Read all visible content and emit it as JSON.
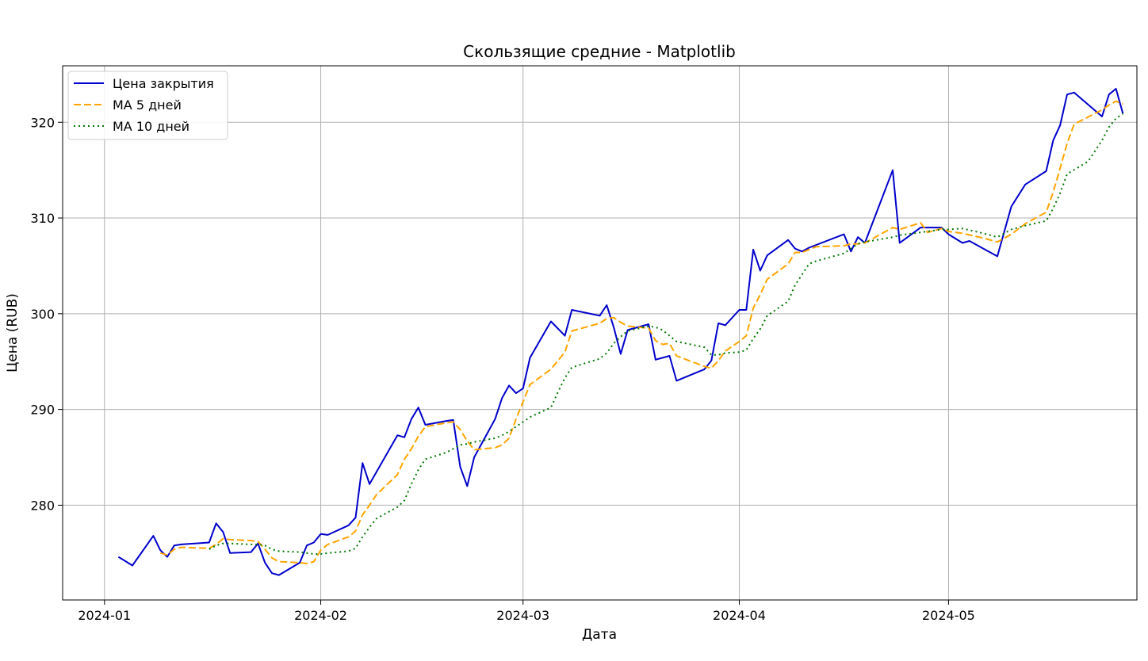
{
  "chart_data": {
    "type": "line",
    "title": "Скользящие средние - Matplotlib",
    "xlabel": "Дата",
    "ylabel": "Цена (RUB)",
    "x_range": [
      "2023-12-26",
      "2024-05-28"
    ],
    "ylim": [
      270.1,
      325.9
    ],
    "x_ticks": [
      "2024-01-01",
      "2024-02-01",
      "2024-03-01",
      "2024-04-01",
      "2024-05-01"
    ],
    "x_tick_labels": [
      "2024-01",
      "2024-02",
      "2024-03",
      "2024-04",
      "2024-05"
    ],
    "y_ticks": [
      280,
      290,
      300,
      310,
      320
    ],
    "y_tick_labels": [
      "280",
      "290",
      "300",
      "310",
      "320"
    ],
    "grid": true,
    "legend_position": "top-left",
    "series": [
      {
        "name": "Цена закрытия",
        "color": "#0000cc",
        "style": "solid",
        "points": [
          [
            "2024-01-03",
            274.6
          ],
          [
            "2024-01-05",
            273.7
          ],
          [
            "2024-01-08",
            276.8
          ],
          [
            "2024-01-09",
            275.3
          ],
          [
            "2024-01-10",
            274.6
          ],
          [
            "2024-01-11",
            275.8
          ],
          [
            "2024-01-12",
            275.9
          ],
          [
            "2024-01-16",
            276.1
          ],
          [
            "2024-01-17",
            278.1
          ],
          [
            "2024-01-18",
            277.2
          ],
          [
            "2024-01-19",
            275.0
          ],
          [
            "2024-01-22",
            275.1
          ],
          [
            "2024-01-23",
            276.0
          ],
          [
            "2024-01-24",
            274.0
          ],
          [
            "2024-01-25",
            272.9
          ],
          [
            "2024-01-26",
            272.7
          ],
          [
            "2024-01-29",
            274.0
          ],
          [
            "2024-01-30",
            275.8
          ],
          [
            "2024-01-31",
            276.1
          ],
          [
            "2024-02-01",
            277.0
          ],
          [
            "2024-02-02",
            276.9
          ],
          [
            "2024-02-05",
            277.9
          ],
          [
            "2024-02-06",
            278.7
          ],
          [
            "2024-02-07",
            284.4
          ],
          [
            "2024-02-08",
            282.2
          ],
          [
            "2024-02-12",
            287.3
          ],
          [
            "2024-02-13",
            287.1
          ],
          [
            "2024-02-14",
            289.0
          ],
          [
            "2024-02-15",
            290.2
          ],
          [
            "2024-02-16",
            288.4
          ],
          [
            "2024-02-19",
            288.8
          ],
          [
            "2024-02-20",
            288.9
          ],
          [
            "2024-02-21",
            284.0
          ],
          [
            "2024-02-22",
            282.0
          ],
          [
            "2024-02-23",
            285.0
          ],
          [
            "2024-02-26",
            289.0
          ],
          [
            "2024-02-27",
            291.2
          ],
          [
            "2024-02-28",
            292.5
          ],
          [
            "2024-02-29",
            291.7
          ],
          [
            "2024-03-01",
            292.2
          ],
          [
            "2024-03-02",
            295.4
          ],
          [
            "2024-03-05",
            299.2
          ],
          [
            "2024-03-07",
            297.7
          ],
          [
            "2024-03-08",
            300.4
          ],
          [
            "2024-03-12",
            299.8
          ],
          [
            "2024-03-13",
            300.9
          ],
          [
            "2024-03-14",
            298.6
          ],
          [
            "2024-03-15",
            295.8
          ],
          [
            "2024-03-16",
            298.3
          ],
          [
            "2024-03-19",
            298.9
          ],
          [
            "2024-03-20",
            295.2
          ],
          [
            "2024-03-22",
            295.6
          ],
          [
            "2024-03-23",
            293.0
          ],
          [
            "2024-03-27",
            294.2
          ],
          [
            "2024-03-28",
            295.1
          ],
          [
            "2024-03-29",
            299.0
          ],
          [
            "2024-03-30",
            298.8
          ],
          [
            "2024-04-01",
            300.4
          ],
          [
            "2024-04-02",
            300.4
          ],
          [
            "2024-04-03",
            306.7
          ],
          [
            "2024-04-04",
            304.5
          ],
          [
            "2024-04-05",
            306.1
          ],
          [
            "2024-04-08",
            307.7
          ],
          [
            "2024-04-09",
            306.8
          ],
          [
            "2024-04-10",
            306.5
          ],
          [
            "2024-04-11",
            306.9
          ],
          [
            "2024-04-16",
            308.3
          ],
          [
            "2024-04-17",
            306.5
          ],
          [
            "2024-04-18",
            308.0
          ],
          [
            "2024-04-19",
            307.4
          ],
          [
            "2024-04-23",
            315.0
          ],
          [
            "2024-04-24",
            307.4
          ],
          [
            "2024-04-27",
            309.0
          ],
          [
            "2024-04-30",
            309.0
          ],
          [
            "2024-05-01",
            308.3
          ],
          [
            "2024-05-03",
            307.4
          ],
          [
            "2024-05-04",
            307.6
          ],
          [
            "2024-05-06",
            306.8
          ],
          [
            "2024-05-08",
            306.0
          ],
          [
            "2024-05-10",
            311.2
          ],
          [
            "2024-05-12",
            313.5
          ],
          [
            "2024-05-15",
            314.9
          ],
          [
            "2024-05-16",
            318.1
          ],
          [
            "2024-05-17",
            319.7
          ],
          [
            "2024-05-18",
            322.9
          ],
          [
            "2024-05-19",
            323.1
          ],
          [
            "2024-05-23",
            320.6
          ],
          [
            "2024-05-24",
            322.9
          ],
          [
            "2024-05-25",
            323.5
          ],
          [
            "2024-05-26",
            320.9
          ]
        ]
      },
      {
        "name": "MA 5 дней",
        "color": "#ffa500",
        "style": "dashed",
        "points": [
          [
            "2024-01-09",
            275.0
          ],
          [
            "2024-01-10",
            274.8
          ],
          [
            "2024-01-11",
            275.4
          ],
          [
            "2024-01-12",
            275.6
          ],
          [
            "2024-01-16",
            275.5
          ],
          [
            "2024-01-17",
            275.9
          ],
          [
            "2024-01-18",
            276.5
          ],
          [
            "2024-01-19",
            276.4
          ],
          [
            "2024-01-22",
            276.3
          ],
          [
            "2024-01-23",
            276.2
          ],
          [
            "2024-01-24",
            275.4
          ],
          [
            "2024-01-25",
            274.5
          ],
          [
            "2024-01-26",
            274.1
          ],
          [
            "2024-01-29",
            274.0
          ],
          [
            "2024-01-30",
            273.9
          ],
          [
            "2024-01-31",
            274.1
          ],
          [
            "2024-02-01",
            275.3
          ],
          [
            "2024-02-02",
            275.9
          ],
          [
            "2024-02-05",
            276.7
          ],
          [
            "2024-02-06",
            277.3
          ],
          [
            "2024-02-07",
            279.0
          ],
          [
            "2024-02-08",
            280.0
          ],
          [
            "2024-02-09",
            281.1
          ],
          [
            "2024-02-12",
            283.2
          ],
          [
            "2024-02-13",
            284.8
          ],
          [
            "2024-02-14",
            285.9
          ],
          [
            "2024-02-15",
            287.2
          ],
          [
            "2024-02-16",
            288.2
          ],
          [
            "2024-02-19",
            288.6
          ],
          [
            "2024-02-20",
            288.7
          ],
          [
            "2024-02-21",
            287.9
          ],
          [
            "2024-02-22",
            286.7
          ],
          [
            "2024-02-23",
            285.8
          ],
          [
            "2024-02-26",
            286.0
          ],
          [
            "2024-02-27",
            286.3
          ],
          [
            "2024-02-28",
            287.0
          ],
          [
            "2024-02-29",
            289.0
          ],
          [
            "2024-03-01",
            290.8
          ],
          [
            "2024-03-02",
            292.6
          ],
          [
            "2024-03-05",
            294.2
          ],
          [
            "2024-03-07",
            296.0
          ],
          [
            "2024-03-08",
            298.2
          ],
          [
            "2024-03-12",
            299.0
          ],
          [
            "2024-03-13",
            299.5
          ],
          [
            "2024-03-14",
            299.6
          ],
          [
            "2024-03-15",
            299.1
          ],
          [
            "2024-03-16",
            298.7
          ],
          [
            "2024-03-19",
            298.5
          ],
          [
            "2024-03-20",
            297.2
          ],
          [
            "2024-03-21",
            296.8
          ],
          [
            "2024-03-22",
            296.9
          ],
          [
            "2024-03-23",
            295.6
          ],
          [
            "2024-03-27",
            294.5
          ],
          [
            "2024-03-28",
            294.3
          ],
          [
            "2024-03-29",
            295.1
          ],
          [
            "2024-03-30",
            296.1
          ],
          [
            "2024-04-01",
            297.1
          ],
          [
            "2024-04-02",
            297.7
          ],
          [
            "2024-04-03",
            300.6
          ],
          [
            "2024-04-04",
            302.0
          ],
          [
            "2024-04-05",
            303.6
          ],
          [
            "2024-04-08",
            305.2
          ],
          [
            "2024-04-09",
            306.4
          ],
          [
            "2024-04-10",
            306.4
          ],
          [
            "2024-04-11",
            306.7
          ],
          [
            "2024-04-12",
            307.0
          ],
          [
            "2024-04-16",
            307.1
          ],
          [
            "2024-04-17",
            307.3
          ],
          [
            "2024-04-18",
            307.3
          ],
          [
            "2024-04-19",
            307.4
          ],
          [
            "2024-04-23",
            309.0
          ],
          [
            "2024-04-24",
            308.8
          ],
          [
            "2024-04-27",
            309.5
          ],
          [
            "2024-04-28",
            308.5
          ],
          [
            "2024-04-30",
            308.9
          ],
          [
            "2024-05-01",
            308.6
          ],
          [
            "2024-05-03",
            308.4
          ],
          [
            "2024-05-06",
            307.9
          ],
          [
            "2024-05-08",
            307.5
          ],
          [
            "2024-05-10",
            308.3
          ],
          [
            "2024-05-12",
            309.4
          ],
          [
            "2024-05-15",
            310.6
          ],
          [
            "2024-05-16",
            312.7
          ],
          [
            "2024-05-17",
            315.2
          ],
          [
            "2024-05-18",
            317.8
          ],
          [
            "2024-05-19",
            319.8
          ],
          [
            "2024-05-23",
            321.3
          ],
          [
            "2024-05-24",
            321.8
          ],
          [
            "2024-05-25",
            322.2
          ],
          [
            "2024-05-26",
            321.9
          ]
        ]
      },
      {
        "name": "MA 10 дней",
        "color": "#007700",
        "style": "dotted",
        "points": [
          [
            "2024-01-16",
            275.4
          ],
          [
            "2024-01-17",
            275.8
          ],
          [
            "2024-01-18",
            276.0
          ],
          [
            "2024-01-19",
            276.0
          ],
          [
            "2024-01-22",
            275.9
          ],
          [
            "2024-01-23",
            275.9
          ],
          [
            "2024-01-24",
            275.8
          ],
          [
            "2024-01-25",
            275.4
          ],
          [
            "2024-01-26",
            275.2
          ],
          [
            "2024-01-29",
            275.1
          ],
          [
            "2024-01-30",
            275.0
          ],
          [
            "2024-01-31",
            274.9
          ],
          [
            "2024-02-01",
            274.9
          ],
          [
            "2024-02-02",
            275.0
          ],
          [
            "2024-02-05",
            275.2
          ],
          [
            "2024-02-06",
            275.5
          ],
          [
            "2024-02-07",
            276.7
          ],
          [
            "2024-02-08",
            277.7
          ],
          [
            "2024-02-09",
            278.6
          ],
          [
            "2024-02-12",
            279.8
          ],
          [
            "2024-02-13",
            280.5
          ],
          [
            "2024-02-14",
            282.2
          ],
          [
            "2024-02-15",
            283.7
          ],
          [
            "2024-02-16",
            284.8
          ],
          [
            "2024-02-19",
            285.5
          ],
          [
            "2024-02-20",
            285.9
          ],
          [
            "2024-02-21",
            286.3
          ],
          [
            "2024-02-22",
            286.4
          ],
          [
            "2024-02-23",
            286.6
          ],
          [
            "2024-02-26",
            287.0
          ],
          [
            "2024-02-27",
            287.3
          ],
          [
            "2024-02-28",
            287.7
          ],
          [
            "2024-02-29",
            288.2
          ],
          [
            "2024-03-01",
            288.7
          ],
          [
            "2024-03-02",
            289.2
          ],
          [
            "2024-03-05",
            290.2
          ],
          [
            "2024-03-06",
            291.8
          ],
          [
            "2024-03-07",
            293.3
          ],
          [
            "2024-03-08",
            294.4
          ],
          [
            "2024-03-12",
            295.3
          ],
          [
            "2024-03-13",
            295.9
          ],
          [
            "2024-03-14",
            296.9
          ],
          [
            "2024-03-15",
            297.6
          ],
          [
            "2024-03-16",
            298.2
          ],
          [
            "2024-03-19",
            298.7
          ],
          [
            "2024-03-20",
            298.6
          ],
          [
            "2024-03-21",
            298.3
          ],
          [
            "2024-03-22",
            297.7
          ],
          [
            "2024-03-23",
            297.1
          ],
          [
            "2024-03-27",
            296.5
          ],
          [
            "2024-03-28",
            295.7
          ],
          [
            "2024-03-29",
            295.7
          ],
          [
            "2024-03-30",
            295.9
          ],
          [
            "2024-04-01",
            296.0
          ],
          [
            "2024-04-02",
            296.2
          ],
          [
            "2024-04-03",
            297.4
          ],
          [
            "2024-04-04",
            298.4
          ],
          [
            "2024-04-05",
            299.8
          ],
          [
            "2024-04-08",
            301.3
          ],
          [
            "2024-04-09",
            303.0
          ],
          [
            "2024-04-10",
            304.1
          ],
          [
            "2024-04-11",
            305.2
          ],
          [
            "2024-04-12",
            305.5
          ],
          [
            "2024-04-16",
            306.3
          ],
          [
            "2024-04-17",
            306.8
          ],
          [
            "2024-04-18",
            307.3
          ],
          [
            "2024-04-19",
            307.5
          ],
          [
            "2024-04-23",
            308.0
          ],
          [
            "2024-04-24",
            308.2
          ],
          [
            "2024-04-27",
            308.5
          ],
          [
            "2024-04-30",
            308.8
          ],
          [
            "2024-05-01",
            308.8
          ],
          [
            "2024-05-03",
            308.9
          ],
          [
            "2024-05-06",
            308.4
          ],
          [
            "2024-05-08",
            308.0
          ],
          [
            "2024-05-10",
            308.8
          ],
          [
            "2024-05-12",
            309.2
          ],
          [
            "2024-05-15",
            309.7
          ],
          [
            "2024-05-16",
            311.0
          ],
          [
            "2024-05-17",
            312.6
          ],
          [
            "2024-05-18",
            314.6
          ],
          [
            "2024-05-21",
            315.9
          ],
          [
            "2024-05-23",
            318.1
          ],
          [
            "2024-05-24",
            319.5
          ],
          [
            "2024-05-25",
            320.4
          ],
          [
            "2024-05-26",
            320.9
          ]
        ]
      }
    ]
  }
}
